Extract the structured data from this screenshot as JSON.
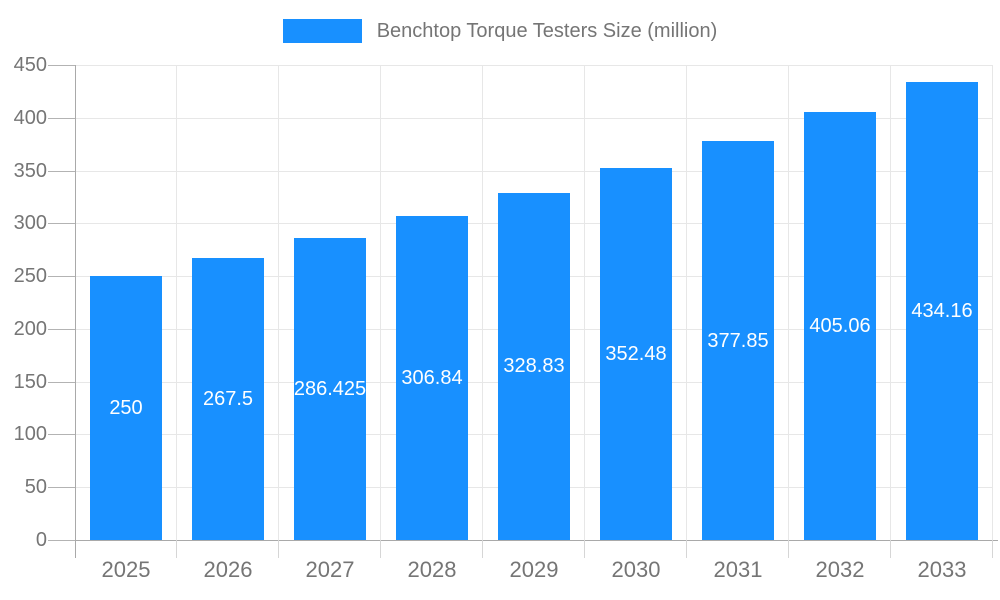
{
  "chart_data": {
    "type": "bar",
    "title": "Benchtop Torque Testers Size (million)",
    "legend": {
      "position": "top",
      "label": "Benchtop Torque Testers Size (million)"
    },
    "categories": [
      "2025",
      "2026",
      "2027",
      "2028",
      "2029",
      "2030",
      "2031",
      "2032",
      "2033"
    ],
    "series": [
      {
        "name": "Benchtop Torque Testers Size (million)",
        "values": [
          250,
          267.5,
          286.425,
          306.84,
          328.83,
          352.48,
          377.85,
          405.06,
          434.16
        ],
        "data_labels": [
          "250",
          "267.5",
          "286.425",
          "306.84",
          "328.83",
          "352.48",
          "377.85",
          "405.06",
          "434.16"
        ]
      }
    ],
    "xlabel": "",
    "ylabel": "",
    "ylim": [
      0,
      450
    ],
    "yticks": [
      0,
      50,
      100,
      150,
      200,
      250,
      300,
      350,
      400,
      450
    ],
    "grid": true,
    "colors": {
      "bar": "#1890ff",
      "value_label_text": "#ffffff",
      "axis_line": "#a9a9a9",
      "gridline": "#e7e7e7",
      "y_tick_mark": "#b3b3b3",
      "x_tick_mark": "#d6d6d6",
      "label_text": "#757575",
      "background": "#ffffff"
    }
  }
}
